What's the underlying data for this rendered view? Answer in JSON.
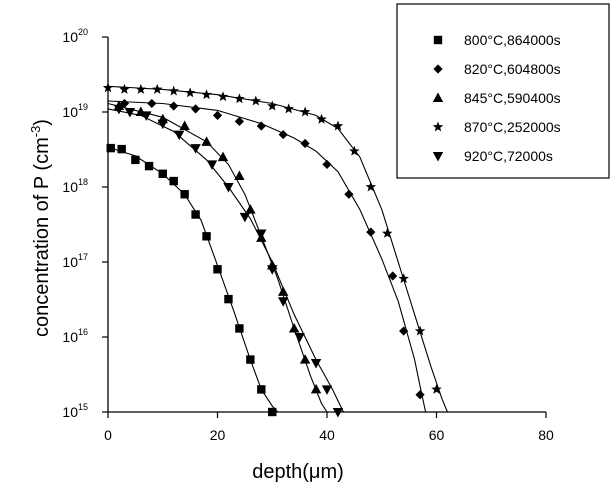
{
  "chart_data": {
    "type": "scatter",
    "xlabel": "depth(μm)",
    "ylabel": "concentration of P (cm",
    "ylabel_sup": "-3",
    "ylabel_close": ")",
    "xlim": [
      0,
      80
    ],
    "ylim": [
      1000000000000000.0,
      1e+20
    ],
    "y_scale": "log",
    "x_ticks": [
      0,
      20,
      40,
      60,
      80
    ],
    "y_ticks": [
      {
        "value": 1000000000000000.0,
        "base": "10",
        "exp": "15"
      },
      {
        "value": 1e+16,
        "base": "10",
        "exp": "16"
      },
      {
        "value": 1e+17,
        "base": "10",
        "exp": "17"
      },
      {
        "value": 1e+18,
        "base": "10",
        "exp": "18"
      },
      {
        "value": 1e+19,
        "base": "10",
        "exp": "19"
      },
      {
        "value": 1e+20,
        "base": "10",
        "exp": "20"
      }
    ],
    "grid": false,
    "legend_position": "top-right",
    "series": [
      {
        "name": "800°C,864000s",
        "marker": "square",
        "points": [
          [
            0.5,
            3.3e+18
          ],
          [
            2.5,
            3.2e+18
          ],
          [
            5,
            2.3e+18
          ],
          [
            7.5,
            1.9e+18
          ],
          [
            10,
            1.5e+18
          ],
          [
            12,
            1.2e+18
          ],
          [
            14,
            8e+17
          ],
          [
            16,
            4.3e+17
          ],
          [
            18,
            2.2e+17
          ],
          [
            20,
            8e+16
          ],
          [
            22,
            3.2e+16
          ],
          [
            24,
            1.3e+16
          ],
          [
            26,
            5000000000000000.0
          ],
          [
            28,
            2000000000000000.0
          ],
          [
            30,
            1000000000000000.0
          ]
        ],
        "fit": [
          [
            0,
            3.4e+18
          ],
          [
            5,
            2.6e+18
          ],
          [
            10,
            1.5e+18
          ],
          [
            14,
            8e+17
          ],
          [
            17,
            3.6e+17
          ],
          [
            20,
            9e+16
          ],
          [
            23,
            2.2e+16
          ],
          [
            26,
            5000000000000000.0
          ],
          [
            28,
            2000000000000000.0
          ],
          [
            30,
            1200000000000000.0
          ],
          [
            31,
            1000000000000000.0
          ]
        ]
      },
      {
        "name": "820°C,604800s",
        "marker": "diamond",
        "points": [
          [
            3,
            1.3e+19
          ],
          [
            8,
            1.3e+19
          ],
          [
            12,
            1.2e+19
          ],
          [
            16,
            1.1e+19
          ],
          [
            20,
            9e+18
          ],
          [
            24,
            7.5e+18
          ],
          [
            28,
            6.5e+18
          ],
          [
            32,
            5e+18
          ],
          [
            36,
            3.8e+18
          ],
          [
            40,
            2e+18
          ],
          [
            44,
            8e+17
          ],
          [
            48,
            2.5e+17
          ],
          [
            52,
            6.5e+16
          ],
          [
            54,
            1.2e+16
          ],
          [
            57,
            1700000000000000.0
          ]
        ],
        "fit": [
          [
            0,
            1.4e+19
          ],
          [
            10,
            1.3e+19
          ],
          [
            20,
            1.05e+19
          ],
          [
            28,
            7e+18
          ],
          [
            34,
            4.5e+18
          ],
          [
            38,
            3e+18
          ],
          [
            42,
            1.6e+18
          ],
          [
            46,
            5e+17
          ],
          [
            50,
            1.1e+17
          ],
          [
            53,
            3e+16
          ],
          [
            56,
            5000000000000000.0
          ],
          [
            57,
            2200000000000000.0
          ],
          [
            58,
            1000000000000000.0
          ]
        ]
      },
      {
        "name": "845°C,590400s",
        "marker": "triangle",
        "points": [
          [
            2,
            1.2e+19
          ],
          [
            6,
            1e+19
          ],
          [
            10,
            8e+18
          ],
          [
            14,
            6.5e+18
          ],
          [
            18,
            4e+18
          ],
          [
            21,
            2.5e+18
          ],
          [
            24,
            1.4e+18
          ],
          [
            26,
            5e+17
          ],
          [
            28,
            2.1e+17
          ],
          [
            30,
            9e+16
          ],
          [
            32,
            4e+16
          ],
          [
            34,
            1.3e+16
          ],
          [
            36,
            5000000000000000.0
          ],
          [
            38,
            2000000000000000.0
          ]
        ],
        "fit": [
          [
            0,
            1.3e+19
          ],
          [
            10,
            8.5e+18
          ],
          [
            18,
            4e+18
          ],
          [
            22,
            2e+18
          ],
          [
            25,
            8e+17
          ],
          [
            28,
            2.2e+17
          ],
          [
            31,
            6e+16
          ],
          [
            34,
            1.3e+16
          ],
          [
            37,
            3000000000000000.0
          ],
          [
            39,
            1300000000000000.0
          ],
          [
            40,
            1000000000000000.0
          ]
        ]
      },
      {
        "name": "870°C,252000s",
        "marker": "star",
        "points": [
          [
            0,
            2.1e+19
          ],
          [
            3,
            2e+19
          ],
          [
            6,
            2e+19
          ],
          [
            9,
            2e+19
          ],
          [
            12,
            1.9e+19
          ],
          [
            15,
            1.8e+19
          ],
          [
            18,
            1.7e+19
          ],
          [
            21,
            1.6e+19
          ],
          [
            24,
            1.5e+19
          ],
          [
            27,
            1.4e+19
          ],
          [
            30,
            1.2e+19
          ],
          [
            33,
            1.1e+19
          ],
          [
            36,
            1e+19
          ],
          [
            39,
            8e+18
          ],
          [
            42,
            6.5e+18
          ],
          [
            45,
            3e+18
          ],
          [
            48,
            1e+18
          ],
          [
            51,
            2.4e+17
          ],
          [
            54,
            6e+16
          ],
          [
            57,
            1.2e+16
          ],
          [
            60,
            2000000000000000.0
          ]
        ],
        "fit": [
          [
            0,
            2.2e+19
          ],
          [
            10,
            2e+19
          ],
          [
            20,
            1.7e+19
          ],
          [
            30,
            1.3e+19
          ],
          [
            38,
            9e+18
          ],
          [
            42,
            6e+18
          ],
          [
            46,
            2.5e+18
          ],
          [
            50,
            5e+17
          ],
          [
            53,
            1e+17
          ],
          [
            56,
            2e+16
          ],
          [
            59,
            4000000000000000.0
          ],
          [
            61,
            1500000000000000.0
          ],
          [
            62,
            1000000000000000.0
          ]
        ]
      },
      {
        "name": "920°C,72000s",
        "marker": "triangle-down",
        "points": [
          [
            2,
            1.1e+19
          ],
          [
            4,
            1e+19
          ],
          [
            7,
            9e+18
          ],
          [
            10,
            7e+18
          ],
          [
            13,
            5e+18
          ],
          [
            16,
            3.3e+18
          ],
          [
            19,
            2e+18
          ],
          [
            22,
            1e+18
          ],
          [
            25,
            4e+17
          ],
          [
            28,
            2.4e+17
          ],
          [
            30,
            8e+16
          ],
          [
            32,
            3e+16
          ],
          [
            35,
            1e+16
          ],
          [
            38,
            4500000000000000.0
          ],
          [
            40,
            2000000000000000.0
          ],
          [
            42,
            1000000000000000.0
          ]
        ],
        "fit": [
          [
            0,
            1.1e+19
          ],
          [
            6,
            9e+18
          ],
          [
            12,
            5.5e+18
          ],
          [
            18,
            2.3e+18
          ],
          [
            22,
            1e+18
          ],
          [
            26,
            3.8e+17
          ],
          [
            30,
            1e+17
          ],
          [
            34,
            2e+16
          ],
          [
            38,
            5000000000000000.0
          ],
          [
            41,
            2000000000000000.0
          ],
          [
            43,
            1000000000000000.0
          ]
        ]
      }
    ]
  }
}
